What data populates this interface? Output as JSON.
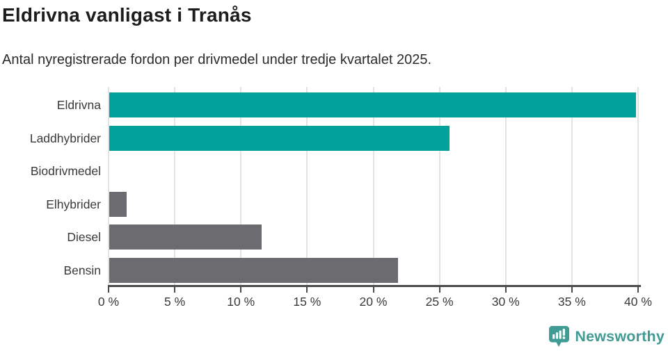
{
  "header": {
    "title": "Eldrivna vanligast i Tranås",
    "subtitle": "Antal nyregistrerade fordon per drivmedel under tredje kvartalet 2025."
  },
  "chart_data": {
    "type": "bar",
    "orientation": "horizontal",
    "title": "Eldrivna vanligast i Tranås",
    "subtitle": "Antal nyregistrerade fordon per drivmedel under tredje kvartalet 2025.",
    "categories": [
      "Eldrivna",
      "Laddhybrider",
      "Biodrivmedel",
      "Elhybrider",
      "Diesel",
      "Bensin"
    ],
    "values": [
      39.8,
      25.7,
      0,
      1.3,
      11.5,
      21.8
    ],
    "unit": "%",
    "bar_colors": [
      "#00a29b",
      "#00a29b",
      "#6b6b70",
      "#6b6b70",
      "#6b6b70",
      "#6b6b70"
    ],
    "x_tick_labels": [
      "0 %",
      "5 %",
      "10 %",
      "15 %",
      "20 %",
      "25 %",
      "30 %",
      "35 %",
      "40 %"
    ],
    "x_tick_values": [
      0,
      5,
      10,
      15,
      20,
      25,
      30,
      35,
      40
    ],
    "xlim": [
      0,
      40
    ],
    "grid": true,
    "legend": "none"
  },
  "colors": {
    "highlight": "#00a29b",
    "muted": "#6b6b70",
    "gridline": "#e3e3e3",
    "axis": "#4a4a4c",
    "tick_text": "#3a3a3a",
    "title_text": "#1d1d1d",
    "logo": "#3f9b94"
  },
  "footer": {
    "brand": "Newsworthy",
    "logo_icon": "newsworthy-chart-bubble-icon"
  }
}
